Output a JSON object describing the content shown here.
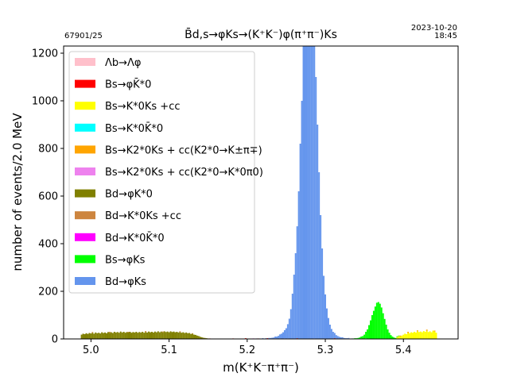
{
  "header": {
    "run_label": "67901/25",
    "date": "2023-10-20",
    "time": "18:45",
    "title": "B̄d,s→φKs→(K⁺K⁻)φ(π⁺π⁻)Ks"
  },
  "chart_data": {
    "type": "bar",
    "subtype": "stacked-histogram",
    "title": "B̄d,s→φKs→(K⁺K⁻)φ(π⁺π⁻)Ks",
    "xlabel": "m(K⁺K⁻π⁺π⁻)",
    "ylabel": "number of events/2.0 MeV",
    "xlim": [
      4.965,
      5.47
    ],
    "ylim": [
      0,
      1230
    ],
    "x_ticks": [
      "5.0",
      "5.1",
      "5.2",
      "5.3",
      "5.4"
    ],
    "x_tick_values": [
      5.0,
      5.1,
      5.2,
      5.3,
      5.4
    ],
    "y_ticks": [
      "0",
      "200",
      "400",
      "600",
      "800",
      "1000",
      "1200"
    ],
    "y_tick_values": [
      0,
      200,
      400,
      600,
      800,
      1000,
      1200
    ],
    "bin_width": 0.002,
    "legend_position": "upper-left",
    "grid": false,
    "series": [
      {
        "name": "Λb→Λφ",
        "color": "#ffc0cb",
        "points": []
      },
      {
        "name": "Bs→φK̄*0",
        "color": "#ff0000",
        "points": [
          [
            5.152,
            2
          ],
          [
            5.182,
            2
          ],
          [
            5.198,
            3
          ],
          [
            5.214,
            2
          ],
          [
            5.226,
            3
          ],
          [
            5.242,
            2
          ],
          [
            5.252,
            2
          ],
          [
            5.264,
            3
          ],
          [
            5.312,
            3
          ],
          [
            5.322,
            2
          ],
          [
            5.346,
            2
          ]
        ]
      },
      {
        "name": "Bs→K*0Ks +cc",
        "color": "#ffff00",
        "points": [
          [
            5.392,
            8
          ],
          [
            5.394,
            12
          ],
          [
            5.396,
            10
          ],
          [
            5.398,
            14
          ],
          [
            5.4,
            18
          ],
          [
            5.402,
            22
          ],
          [
            5.404,
            20
          ],
          [
            5.406,
            25
          ],
          [
            5.408,
            24
          ],
          [
            5.41,
            28
          ],
          [
            5.412,
            26
          ],
          [
            5.414,
            30
          ],
          [
            5.416,
            27
          ],
          [
            5.418,
            32
          ],
          [
            5.42,
            29
          ],
          [
            5.422,
            31
          ],
          [
            5.424,
            28
          ],
          [
            5.426,
            33
          ],
          [
            5.428,
            30
          ],
          [
            5.43,
            34
          ],
          [
            5.432,
            29
          ],
          [
            5.434,
            32
          ],
          [
            5.436,
            28
          ],
          [
            5.438,
            35
          ],
          [
            5.44,
            31
          ],
          [
            5.442,
            26
          ]
        ]
      },
      {
        "name": "Bs→K*0K̄*0",
        "color": "#00ffff",
        "points": []
      },
      {
        "name": "Bs→K2*0Ks + cc(K2*0→K±π∓)",
        "color": "#ffa500",
        "points": [
          [
            5.396,
            4
          ],
          [
            5.406,
            5
          ],
          [
            5.418,
            4
          ],
          [
            5.43,
            5
          ],
          [
            5.44,
            4
          ]
        ]
      },
      {
        "name": "Bs→K2*0Ks + cc(K2*0→K*0π0)",
        "color": "#ee82ee",
        "points": [
          [
            5.236,
            2
          ],
          [
            5.3,
            2
          ],
          [
            5.33,
            2
          ],
          [
            5.352,
            2
          ]
        ]
      },
      {
        "name": "Bd→φK*0",
        "color": "#808000",
        "points": [
          [
            4.988,
            18
          ],
          [
            4.99,
            22
          ],
          [
            4.992,
            20
          ],
          [
            4.994,
            24
          ],
          [
            4.996,
            21
          ],
          [
            4.998,
            25
          ],
          [
            5.0,
            23
          ],
          [
            5.002,
            26
          ],
          [
            5.004,
            22
          ],
          [
            5.006,
            27
          ],
          [
            5.008,
            24
          ],
          [
            5.01,
            26
          ],
          [
            5.012,
            23
          ],
          [
            5.014,
            28
          ],
          [
            5.016,
            25
          ],
          [
            5.018,
            27
          ],
          [
            5.02,
            24
          ],
          [
            5.022,
            29
          ],
          [
            5.024,
            26
          ],
          [
            5.026,
            28
          ],
          [
            5.028,
            25
          ],
          [
            5.03,
            30
          ],
          [
            5.032,
            27
          ],
          [
            5.034,
            29
          ],
          [
            5.036,
            26
          ],
          [
            5.038,
            31
          ],
          [
            5.04,
            27
          ],
          [
            5.042,
            30
          ],
          [
            5.044,
            26
          ],
          [
            5.046,
            29
          ],
          [
            5.048,
            27
          ],
          [
            5.05,
            30
          ],
          [
            5.052,
            26
          ],
          [
            5.054,
            29
          ],
          [
            5.056,
            27
          ],
          [
            5.058,
            30
          ],
          [
            5.06,
            26
          ],
          [
            5.062,
            29
          ],
          [
            5.064,
            27
          ],
          [
            5.066,
            30
          ],
          [
            5.068,
            26
          ],
          [
            5.07,
            29
          ],
          [
            5.072,
            27
          ],
          [
            5.074,
            31
          ],
          [
            5.076,
            28
          ],
          [
            5.078,
            30
          ],
          [
            5.08,
            27
          ],
          [
            5.082,
            31
          ],
          [
            5.084,
            28
          ],
          [
            5.086,
            32
          ],
          [
            5.088,
            28
          ],
          [
            5.09,
            31
          ],
          [
            5.092,
            28
          ],
          [
            5.094,
            32
          ],
          [
            5.096,
            29
          ],
          [
            5.098,
            31
          ],
          [
            5.1,
            28
          ],
          [
            5.102,
            32
          ],
          [
            5.104,
            29
          ],
          [
            5.106,
            31
          ],
          [
            5.108,
            28
          ],
          [
            5.11,
            30
          ],
          [
            5.112,
            27
          ],
          [
            5.114,
            29
          ],
          [
            5.116,
            26
          ],
          [
            5.118,
            28
          ],
          [
            5.12,
            25
          ],
          [
            5.122,
            27
          ],
          [
            5.124,
            24
          ],
          [
            5.126,
            25
          ],
          [
            5.128,
            21
          ],
          [
            5.13,
            22
          ],
          [
            5.132,
            18
          ],
          [
            5.134,
            17
          ],
          [
            5.136,
            14
          ],
          [
            5.138,
            12
          ],
          [
            5.14,
            9
          ],
          [
            5.142,
            7
          ],
          [
            5.144,
            5
          ],
          [
            5.146,
            4
          ],
          [
            5.148,
            3
          ],
          [
            5.15,
            2
          ]
        ]
      },
      {
        "name": "Bd→K*0Ks +cc",
        "color": "#cd853f",
        "points": [
          [
            5.002,
            3
          ],
          [
            5.024,
            4
          ],
          [
            5.048,
            3
          ],
          [
            5.07,
            4
          ],
          [
            5.092,
            3
          ],
          [
            5.114,
            3
          ],
          [
            5.13,
            2
          ]
        ]
      },
      {
        "name": "Bd→K*0K̄*0",
        "color": "#ff00ff",
        "points": [
          [
            5.208,
            2
          ],
          [
            5.248,
            2
          ],
          [
            5.286,
            2
          ]
        ]
      },
      {
        "name": "Bs→φKs",
        "color": "#00ff00",
        "points": [
          [
            5.336,
            2
          ],
          [
            5.338,
            3
          ],
          [
            5.34,
            3
          ],
          [
            5.342,
            4
          ],
          [
            5.344,
            6
          ],
          [
            5.346,
            8
          ],
          [
            5.348,
            12
          ],
          [
            5.35,
            18
          ],
          [
            5.352,
            28
          ],
          [
            5.354,
            40
          ],
          [
            5.356,
            58
          ],
          [
            5.358,
            78
          ],
          [
            5.36,
            100
          ],
          [
            5.362,
            118
          ],
          [
            5.364,
            136
          ],
          [
            5.366,
            152
          ],
          [
            5.368,
            155
          ],
          [
            5.37,
            148
          ],
          [
            5.372,
            132
          ],
          [
            5.374,
            108
          ],
          [
            5.376,
            84
          ],
          [
            5.378,
            60
          ],
          [
            5.38,
            40
          ],
          [
            5.382,
            26
          ],
          [
            5.384,
            16
          ],
          [
            5.386,
            10
          ],
          [
            5.388,
            6
          ],
          [
            5.39,
            4
          ],
          [
            5.392,
            3
          ],
          [
            5.394,
            2
          ]
        ]
      },
      {
        "name": "Bd→φKs",
        "color": "#6495ed",
        "points": [
          [
            5.212,
            2
          ],
          [
            5.216,
            2
          ],
          [
            5.22,
            3
          ],
          [
            5.224,
            3
          ],
          [
            5.228,
            4
          ],
          [
            5.23,
            4
          ],
          [
            5.232,
            5
          ],
          [
            5.234,
            6
          ],
          [
            5.236,
            8
          ],
          [
            5.238,
            10
          ],
          [
            5.24,
            13
          ],
          [
            5.242,
            17
          ],
          [
            5.244,
            22
          ],
          [
            5.246,
            28
          ],
          [
            5.248,
            35
          ],
          [
            5.25,
            45
          ],
          [
            5.252,
            60
          ],
          [
            5.254,
            85
          ],
          [
            5.256,
            125
          ],
          [
            5.258,
            190
          ],
          [
            5.26,
            270
          ],
          [
            5.262,
            360
          ],
          [
            5.264,
            470
          ],
          [
            5.266,
            620
          ],
          [
            5.268,
            820
          ],
          [
            5.27,
            1000
          ],
          [
            5.272,
            1230
          ],
          [
            5.274,
            1230
          ],
          [
            5.276,
            1230
          ],
          [
            5.278,
            1230
          ],
          [
            5.28,
            1230
          ],
          [
            5.282,
            1230
          ],
          [
            5.284,
            1230
          ],
          [
            5.286,
            1230
          ],
          [
            5.288,
            1100
          ],
          [
            5.29,
            900
          ],
          [
            5.292,
            700
          ],
          [
            5.294,
            520
          ],
          [
            5.296,
            380
          ],
          [
            5.298,
            265
          ],
          [
            5.3,
            185
          ],
          [
            5.302,
            128
          ],
          [
            5.304,
            88
          ],
          [
            5.306,
            60
          ],
          [
            5.308,
            42
          ],
          [
            5.31,
            30
          ],
          [
            5.312,
            22
          ],
          [
            5.314,
            16
          ],
          [
            5.316,
            12
          ],
          [
            5.318,
            9
          ],
          [
            5.32,
            7
          ],
          [
            5.322,
            5
          ],
          [
            5.324,
            4
          ],
          [
            5.326,
            3
          ],
          [
            5.328,
            3
          ],
          [
            5.33,
            2
          ],
          [
            5.334,
            2
          ]
        ]
      }
    ]
  }
}
